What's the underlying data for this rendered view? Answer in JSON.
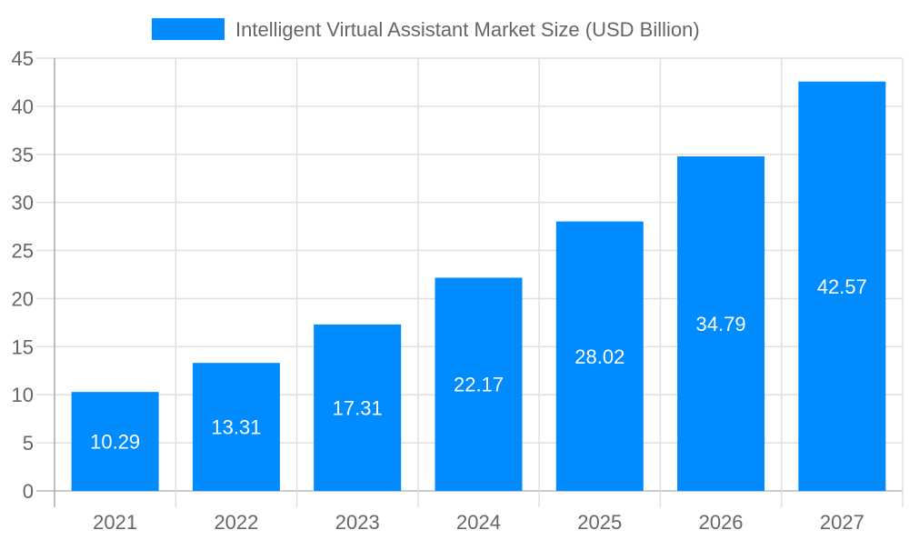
{
  "chart_data": {
    "type": "bar",
    "categories": [
      "2021",
      "2022",
      "2023",
      "2024",
      "2025",
      "2026",
      "2027"
    ],
    "series": [
      {
        "name": "Intelligent Virtual Assistant Market  Size (USD Billion)",
        "values": [
          10.29,
          13.31,
          17.31,
          22.17,
          28.02,
          34.79,
          42.57
        ]
      }
    ],
    "data_labels": [
      "10.29",
      "13.31",
      "17.31",
      "22.17",
      "28.02",
      "34.79",
      "42.57"
    ],
    "yticks": [
      "0",
      "5",
      "10",
      "15",
      "20",
      "25",
      "30",
      "35",
      "40",
      "45"
    ],
    "ylim": [
      0,
      45
    ],
    "grid": true,
    "legend_position": "top",
    "color": "#008cff"
  }
}
